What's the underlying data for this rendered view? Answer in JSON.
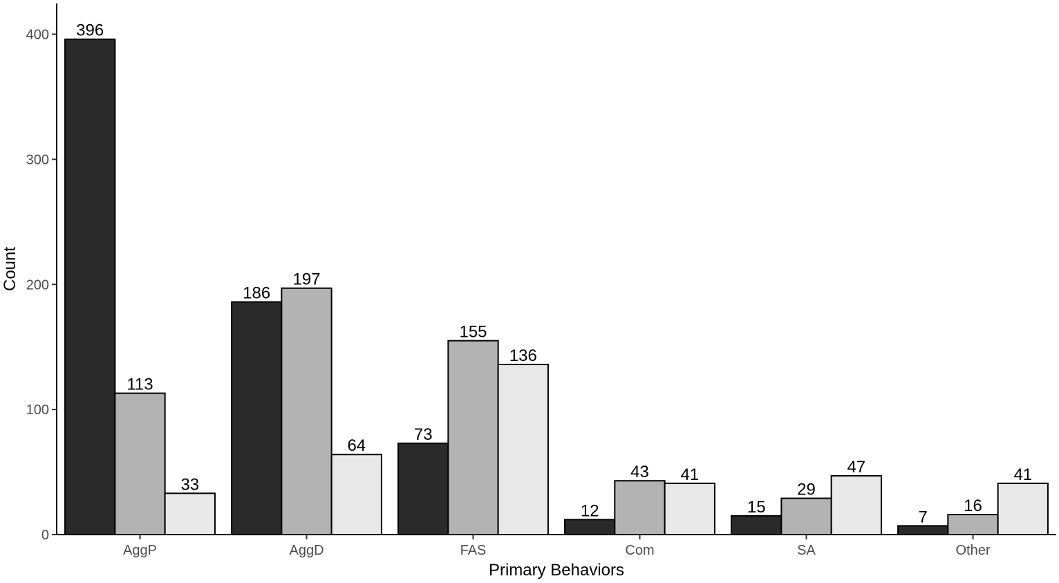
{
  "chart_data": {
    "type": "bar",
    "title": "",
    "xlabel": "Primary Behaviors",
    "ylabel": "Count",
    "categories": [
      "AggP",
      "AggD",
      "FAS",
      "Com",
      "SA",
      "Other"
    ],
    "series": [
      {
        "values": [
          396,
          186,
          73,
          12,
          15,
          7
        ],
        "color": "#2a2a2a"
      },
      {
        "values": [
          113,
          197,
          155,
          43,
          29,
          16
        ],
        "color": "#b3b3b3"
      },
      {
        "values": [
          33,
          64,
          136,
          41,
          47,
          41
        ],
        "color": "#e8e8e8"
      }
    ],
    "yticks": [
      0,
      100,
      200,
      300,
      400
    ],
    "ylim": [
      0,
      400
    ],
    "grid": false,
    "legend": "none"
  }
}
